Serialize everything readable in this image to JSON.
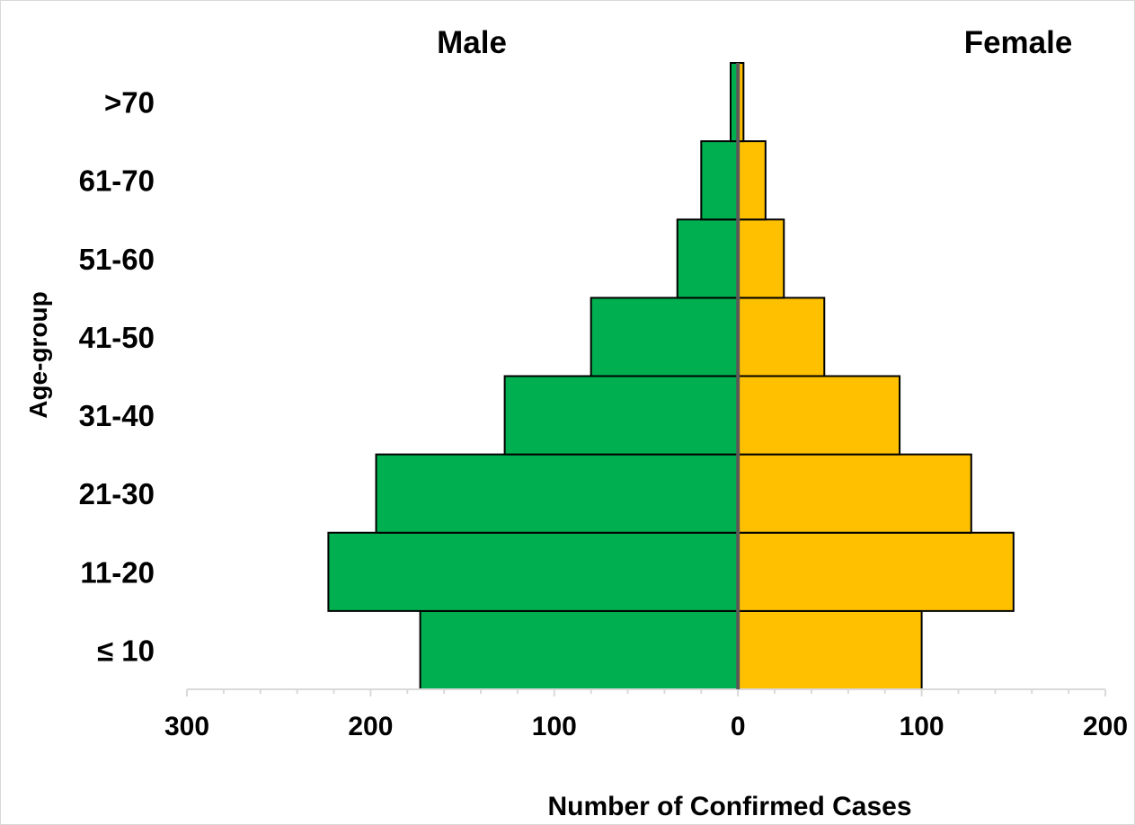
{
  "chart_data": {
    "type": "bar",
    "orientation": "horizontal",
    "layout": "population-pyramid",
    "categories": [
      "≤ 10",
      "11-20",
      "21-30",
      "31-40",
      "41-50",
      "51-60",
      "61-70",
      ">70"
    ],
    "series": [
      {
        "name": "Male",
        "side": "left",
        "color": "#00b050",
        "values": [
          173,
          223,
          197,
          127,
          80,
          33,
          20,
          4
        ]
      },
      {
        "name": "Female",
        "side": "right",
        "color": "#ffc000",
        "values": [
          100,
          150,
          127,
          88,
          47,
          25,
          15,
          3
        ]
      }
    ],
    "xlabel": "Number of Confirmed Cases",
    "ylabel": "Age-group",
    "xlim": [
      -300,
      200
    ],
    "x_ticks": [
      -300,
      -200,
      -100,
      0,
      100,
      200
    ],
    "x_tick_labels": [
      "300",
      "200",
      "100",
      "0",
      "100",
      "200"
    ],
    "grid": false,
    "legend": "none",
    "center_line_color": "#595959",
    "axis_color": "#d9d9d9",
    "bar_outline_color": "#000000"
  }
}
